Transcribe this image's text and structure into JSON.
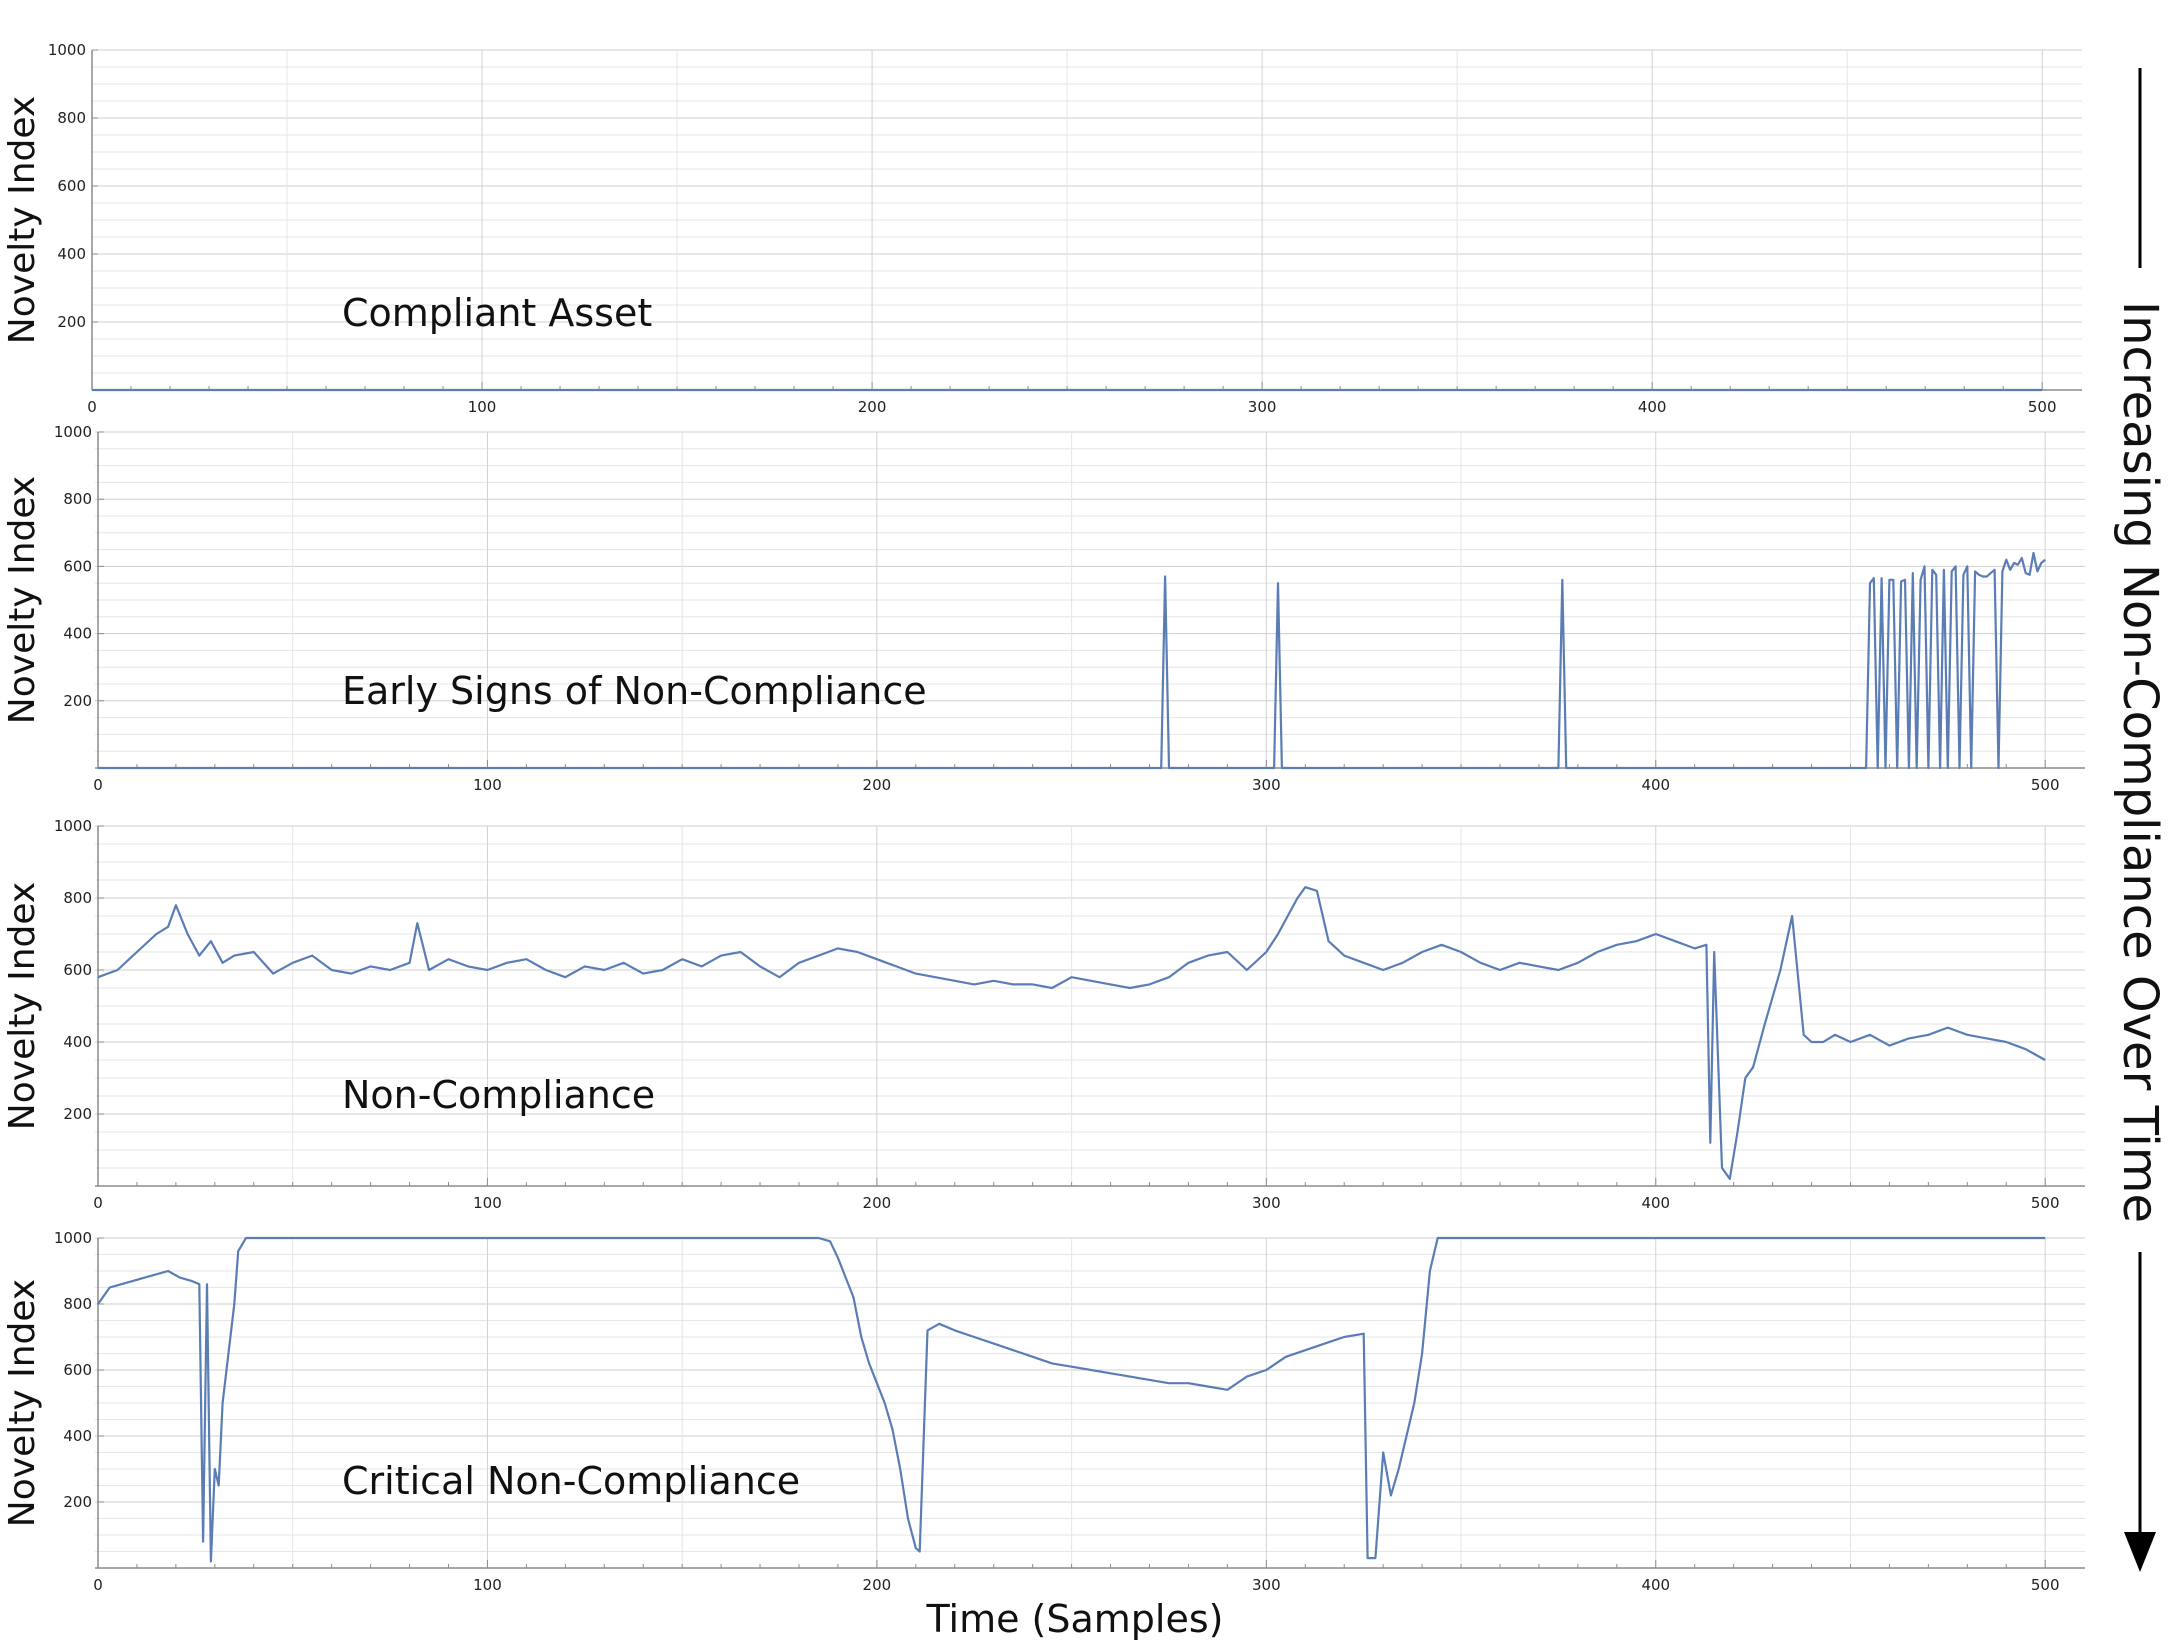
{
  "side_label": "Increasing Non-Compliance Over Time",
  "x_axis_title": "Time (Samples)",
  "colors": {
    "series": "#5b7db5",
    "grid": "#dcdcdc",
    "axis": "#8c8c8c"
  },
  "chart_data": [
    {
      "type": "line",
      "annotation": "Compliant Asset",
      "ylabel": "Novelty Index",
      "xlim": [
        0,
        510
      ],
      "ylim": [
        0,
        1000
      ],
      "x_ticks": [
        "0",
        "100",
        "200",
        "300",
        "400",
        "500"
      ],
      "y_ticks": [
        "200",
        "400",
        "600",
        "800",
        "1000"
      ],
      "grid": true,
      "series": [
        {
          "x": [
            0,
            500
          ],
          "y": [
            0,
            0
          ]
        }
      ]
    },
    {
      "type": "line",
      "annotation": "Early Signs of Non-Compliance",
      "ylabel": "Novelty Index",
      "xlim": [
        0,
        510
      ],
      "ylim": [
        0,
        1000
      ],
      "x_ticks": [
        "0",
        "100",
        "200",
        "300",
        "400",
        "500"
      ],
      "y_ticks": [
        "200",
        "400",
        "600",
        "800",
        "1000"
      ],
      "grid": true,
      "series": [
        {
          "x": [
            0,
            273,
            274,
            275,
            302,
            303,
            304,
            375,
            376,
            377,
            454,
            455,
            456,
            457,
            458,
            459,
            460,
            461,
            462,
            463,
            464,
            465,
            466,
            467,
            468,
            469,
            470,
            471,
            472,
            473,
            474,
            475,
            476,
            477,
            478,
            479,
            480,
            481,
            482,
            483,
            484,
            485,
            486,
            487,
            488,
            489,
            490,
            491,
            492,
            493,
            494,
            495,
            496,
            497,
            498,
            499,
            500
          ],
          "y": [
            0,
            0,
            570,
            0,
            0,
            550,
            0,
            0,
            560,
            0,
            0,
            550,
            565,
            0,
            565,
            0,
            560,
            560,
            0,
            555,
            560,
            0,
            580,
            0,
            560,
            600,
            0,
            590,
            575,
            0,
            590,
            0,
            585,
            600,
            0,
            575,
            600,
            0,
            585,
            575,
            570,
            570,
            580,
            590,
            0,
            585,
            620,
            590,
            610,
            605,
            625,
            580,
            575,
            640,
            585,
            610,
            620
          ]
        }
      ]
    },
    {
      "type": "line",
      "annotation": "Non-Compliance",
      "ylabel": "Novelty Index",
      "xlim": [
        0,
        510
      ],
      "ylim": [
        0,
        1000
      ],
      "x_ticks": [
        "0",
        "100",
        "200",
        "300",
        "400",
        "500"
      ],
      "y_ticks": [
        "200",
        "400",
        "600",
        "800",
        "1000"
      ],
      "grid": true,
      "series": [
        {
          "x": [
            0,
            5,
            10,
            15,
            18,
            20,
            23,
            26,
            29,
            32,
            35,
            40,
            45,
            50,
            55,
            60,
            65,
            70,
            75,
            80,
            82,
            85,
            90,
            95,
            100,
            105,
            110,
            115,
            120,
            125,
            130,
            135,
            140,
            145,
            150,
            155,
            160,
            165,
            170,
            175,
            180,
            185,
            190,
            195,
            200,
            205,
            210,
            215,
            220,
            225,
            230,
            235,
            240,
            245,
            250,
            255,
            260,
            265,
            270,
            275,
            280,
            285,
            290,
            295,
            300,
            303,
            306,
            308,
            310,
            313,
            316,
            320,
            325,
            330,
            335,
            340,
            345,
            350,
            355,
            360,
            365,
            370,
            375,
            380,
            385,
            390,
            395,
            400,
            405,
            410,
            413,
            414,
            415,
            417,
            419,
            421,
            423,
            425,
            428,
            432,
            435,
            438,
            440,
            443,
            446,
            450,
            455,
            460,
            465,
            470,
            475,
            480,
            485,
            490,
            495,
            500
          ],
          "y": [
            580,
            600,
            650,
            700,
            720,
            780,
            700,
            640,
            680,
            620,
            640,
            650,
            590,
            620,
            640,
            600,
            590,
            610,
            600,
            620,
            730,
            600,
            630,
            610,
            600,
            620,
            630,
            600,
            580,
            610,
            600,
            620,
            590,
            600,
            630,
            610,
            640,
            650,
            610,
            580,
            620,
            640,
            660,
            650,
            630,
            610,
            590,
            580,
            570,
            560,
            570,
            560,
            560,
            550,
            580,
            570,
            560,
            550,
            560,
            580,
            620,
            640,
            650,
            600,
            650,
            700,
            760,
            800,
            830,
            820,
            680,
            640,
            620,
            600,
            620,
            650,
            670,
            650,
            620,
            600,
            620,
            610,
            600,
            620,
            650,
            670,
            680,
            700,
            680,
            660,
            670,
            120,
            650,
            50,
            20,
            150,
            300,
            330,
            450,
            600,
            750,
            420,
            400,
            400,
            420,
            400,
            420,
            390,
            410,
            420,
            440,
            420,
            410,
            400,
            380,
            350
          ]
        }
      ]
    },
    {
      "type": "line",
      "annotation": "Critical Non-Compliance",
      "ylabel": "Novelty Index",
      "xlim": [
        0,
        510
      ],
      "ylim": [
        0,
        1000
      ],
      "x_ticks": [
        "0",
        "100",
        "200",
        "300",
        "400",
        "500"
      ],
      "y_ticks": [
        "200",
        "400",
        "600",
        "800",
        "1000"
      ],
      "grid": true,
      "series": [
        {
          "x": [
            0,
            3,
            6,
            9,
            12,
            15,
            18,
            21,
            24,
            26,
            27,
            28,
            29,
            30,
            31,
            32,
            33,
            34,
            35,
            36,
            37,
            38,
            40,
            185,
            188,
            190,
            192,
            194,
            196,
            198,
            200,
            202,
            204,
            206,
            208,
            210,
            211,
            213,
            216,
            220,
            225,
            230,
            235,
            240,
            245,
            250,
            255,
            260,
            265,
            270,
            275,
            280,
            285,
            290,
            295,
            300,
            305,
            310,
            315,
            320,
            325,
            326,
            328,
            330,
            332,
            334,
            336,
            338,
            340,
            342,
            343,
            344,
            500
          ],
          "y": [
            800,
            850,
            860,
            870,
            880,
            890,
            900,
            880,
            870,
            860,
            80,
            860,
            20,
            300,
            250,
            500,
            600,
            700,
            800,
            960,
            980,
            1000,
            1000,
            1000,
            990,
            940,
            880,
            820,
            700,
            620,
            560,
            500,
            420,
            300,
            150,
            60,
            50,
            720,
            740,
            720,
            700,
            680,
            660,
            640,
            620,
            610,
            600,
            590,
            580,
            570,
            560,
            560,
            550,
            540,
            580,
            600,
            640,
            660,
            680,
            700,
            710,
            30,
            30,
            350,
            220,
            300,
            400,
            500,
            650,
            900,
            950,
            1000,
            1000
          ]
        }
      ]
    }
  ]
}
